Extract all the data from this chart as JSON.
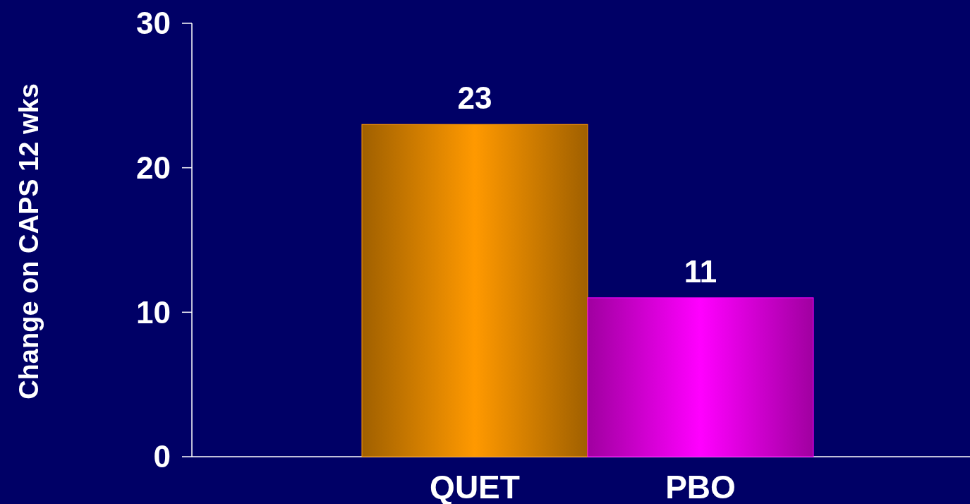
{
  "chart_data": {
    "type": "bar",
    "ylabel": "Change on CAPS 12 wks",
    "categories": [
      "QUET",
      "PBO"
    ],
    "values": [
      23,
      11
    ],
    "colors": [
      "#ff9900",
      "#ff00ff"
    ],
    "ylim": [
      0,
      30
    ],
    "yticks": [
      0,
      10,
      20,
      30
    ],
    "data_labels": true,
    "grid": false
  }
}
